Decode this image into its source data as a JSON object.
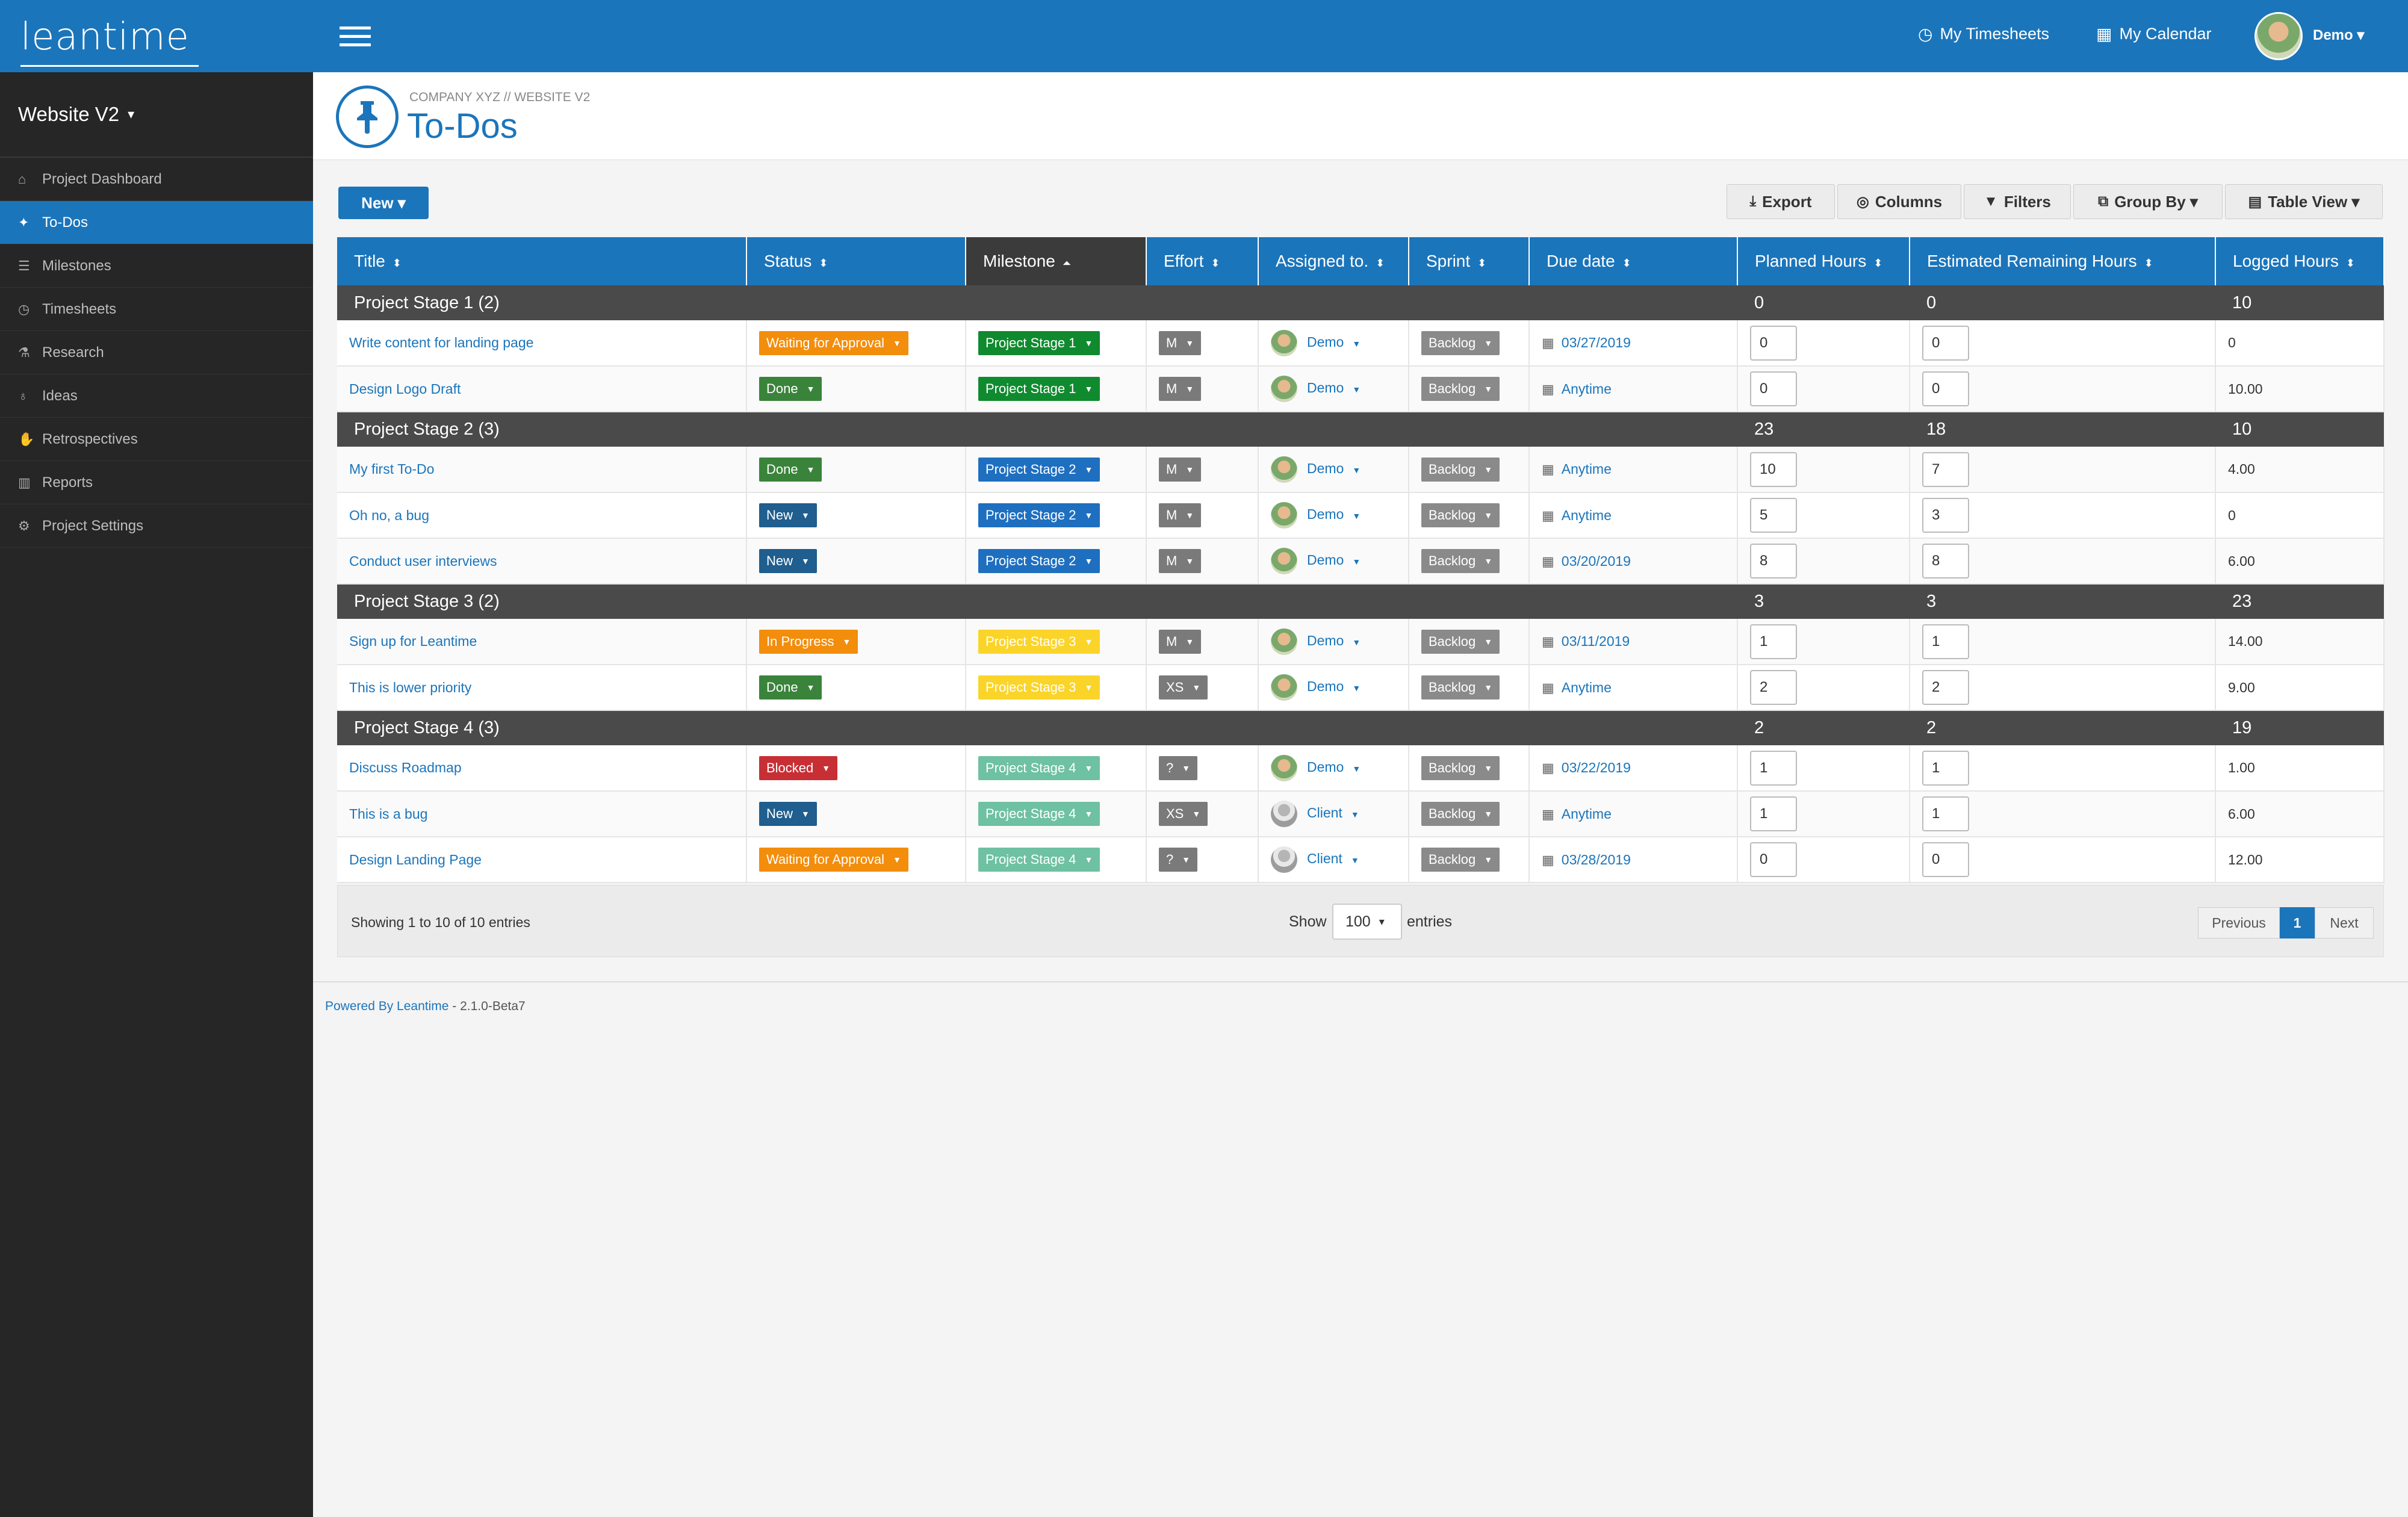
{
  "app": {
    "logo_text": "leantime",
    "project_name": "Website V2",
    "caret": "▾"
  },
  "sidebar": {
    "items": [
      {
        "label": "Project Dashboard",
        "icon": "home-icon",
        "glyph": "⌂"
      },
      {
        "label": "To-Dos",
        "icon": "pin-icon",
        "glyph": "✦"
      },
      {
        "label": "Milestones",
        "icon": "sliders-icon",
        "glyph": "☰"
      },
      {
        "label": "Timesheets",
        "icon": "clock-icon",
        "glyph": "◷"
      },
      {
        "label": "Research",
        "icon": "flask-icon",
        "glyph": "⚗"
      },
      {
        "label": "Ideas",
        "icon": "lightbulb-icon",
        "glyph": "♁"
      },
      {
        "label": "Retrospectives",
        "icon": "hand-icon",
        "glyph": "✋"
      },
      {
        "label": "Reports",
        "icon": "bar-chart-icon",
        "glyph": "▥"
      },
      {
        "label": "Project Settings",
        "icon": "gear-icon",
        "glyph": "⚙"
      }
    ],
    "active_index": 1
  },
  "topbar": {
    "timesheets_label": "My Timesheets",
    "calendar_label": "My Calendar",
    "user_name": "Demo ▾"
  },
  "header": {
    "breadcrumb": "COMPANY XYZ // WEBSITE V2",
    "title": "To-Dos"
  },
  "toolbar": {
    "new_label": "New ▾",
    "export_label": "Export",
    "columns_label": "Columns",
    "filters_label": "Filters",
    "groupby_label": "Group By ▾",
    "tableview_label": "Table View ▾"
  },
  "table": {
    "columns": [
      "Title",
      "Status",
      "Milestone",
      "Effort",
      "Assigned to.",
      "Sprint",
      "Due date",
      "Planned Hours",
      "Estimated Remaining Hours",
      "Logged Hours"
    ],
    "sort_glyph": "⬍",
    "sorted_glyph": "⏶",
    "groups": [
      {
        "label": "Project Stage 1 (2)",
        "planned": "0",
        "remaining": "0",
        "logged": "10",
        "rows": [
          {
            "title": "Write content for landing page",
            "status": "Waiting for Approval",
            "status_cls": "s-wait",
            "milestone": "Project Stage 1",
            "ms_cls": "m1",
            "effort": "M",
            "assignee": "Demo",
            "client": false,
            "sprint": "Backlog",
            "due": "03/27/2019",
            "planned": "0",
            "remaining": "0",
            "logged": "0"
          },
          {
            "title": "Design Logo Draft",
            "status": "Done",
            "status_cls": "s-done",
            "milestone": "Project Stage 1",
            "ms_cls": "m1",
            "effort": "M",
            "assignee": "Demo",
            "client": false,
            "sprint": "Backlog",
            "due": "Anytime",
            "planned": "0",
            "remaining": "0",
            "logged": "10.00"
          }
        ]
      },
      {
        "label": "Project Stage 2 (3)",
        "planned": "23",
        "remaining": "18",
        "logged": "10",
        "rows": [
          {
            "title": "My first To-Do",
            "status": "Done",
            "status_cls": "s-done",
            "milestone": "Project Stage 2",
            "ms_cls": "m2",
            "effort": "M",
            "assignee": "Demo",
            "client": false,
            "sprint": "Backlog",
            "due": "Anytime",
            "planned": "10",
            "remaining": "7",
            "logged": "4.00"
          },
          {
            "title": "Oh no, a bug",
            "status": "New",
            "status_cls": "s-new",
            "milestone": "Project Stage 2",
            "ms_cls": "m2",
            "effort": "M",
            "assignee": "Demo",
            "client": false,
            "sprint": "Backlog",
            "due": "Anytime",
            "planned": "5",
            "remaining": "3",
            "logged": "0"
          },
          {
            "title": "Conduct user interviews",
            "status": "New",
            "status_cls": "s-new",
            "milestone": "Project Stage 2",
            "ms_cls": "m2",
            "effort": "M",
            "assignee": "Demo",
            "client": false,
            "sprint": "Backlog",
            "due": "03/20/2019",
            "planned": "8",
            "remaining": "8",
            "logged": "6.00"
          }
        ]
      },
      {
        "label": "Project Stage 3 (2)",
        "planned": "3",
        "remaining": "3",
        "logged": "23",
        "rows": [
          {
            "title": "Sign up for Leantime",
            "status": "In Progress",
            "status_cls": "s-progress",
            "milestone": "Project Stage 3",
            "ms_cls": "m3",
            "effort": "M",
            "assignee": "Demo",
            "client": false,
            "sprint": "Backlog",
            "due": "03/11/2019",
            "planned": "1",
            "remaining": "1",
            "logged": "14.00"
          },
          {
            "title": "This is lower priority",
            "status": "Done",
            "status_cls": "s-done",
            "milestone": "Project Stage 3",
            "ms_cls": "m3",
            "effort": "XS",
            "assignee": "Demo",
            "client": false,
            "sprint": "Backlog",
            "due": "Anytime",
            "planned": "2",
            "remaining": "2",
            "logged": "9.00"
          }
        ]
      },
      {
        "label": "Project Stage 4 (3)",
        "planned": "2",
        "remaining": "2",
        "logged": "19",
        "rows": [
          {
            "title": "Discuss Roadmap",
            "status": "Blocked",
            "status_cls": "s-blocked",
            "milestone": "Project Stage 4",
            "ms_cls": "m4",
            "effort": "?",
            "assignee": "Demo",
            "client": false,
            "sprint": "Backlog",
            "due": "03/22/2019",
            "planned": "1",
            "remaining": "1",
            "logged": "1.00"
          },
          {
            "title": "This is a bug",
            "status": "New",
            "status_cls": "s-new",
            "milestone": "Project Stage 4",
            "ms_cls": "m4",
            "effort": "XS",
            "assignee": "Client",
            "client": true,
            "sprint": "Backlog",
            "due": "Anytime",
            "planned": "1",
            "remaining": "1",
            "logged": "6.00"
          },
          {
            "title": "Design Landing Page",
            "status": "Waiting for Approval",
            "status_cls": "s-wait",
            "milestone": "Project Stage 4",
            "ms_cls": "m4",
            "effort": "?",
            "assignee": "Client",
            "client": true,
            "sprint": "Backlog",
            "due": "03/28/2019",
            "planned": "0",
            "remaining": "0",
            "logged": "12.00"
          }
        ]
      }
    ]
  },
  "table_footer": {
    "showing": "Showing 1 to 10 of 10 entries",
    "show_label": "Show",
    "page_size": "100",
    "page_size_caret": "▾",
    "entries_label": "entries",
    "previous": "Previous",
    "current_page": "1",
    "next": "Next"
  },
  "footer": {
    "powered_link": "Powered By Leantime",
    "version": " - 2.1.0-Beta7"
  },
  "colors": {
    "brand": "#1b75bb",
    "sidebar": "#262626",
    "group_row": "#4a4a4a"
  }
}
